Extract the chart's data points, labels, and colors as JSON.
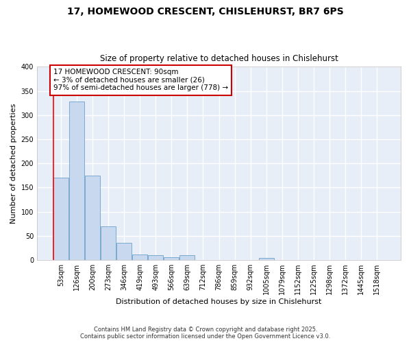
{
  "title": "17, HOMEWOOD CRESCENT, CHISLEHURST, BR7 6PS",
  "subtitle": "Size of property relative to detached houses in Chislehurst",
  "xlabel": "Distribution of detached houses by size in Chislehurst",
  "ylabel": "Number of detached properties",
  "categories": [
    "53sqm",
    "126sqm",
    "200sqm",
    "273sqm",
    "346sqm",
    "419sqm",
    "493sqm",
    "566sqm",
    "639sqm",
    "712sqm",
    "786sqm",
    "859sqm",
    "932sqm",
    "1005sqm",
    "1079sqm",
    "1152sqm",
    "1225sqm",
    "1298sqm",
    "1372sqm",
    "1445sqm",
    "1518sqm"
  ],
  "values": [
    170,
    328,
    175,
    70,
    35,
    11,
    10,
    5,
    10,
    0,
    0,
    0,
    0,
    4,
    0,
    0,
    0,
    0,
    0,
    0,
    0
  ],
  "bar_color": "#c8d8ee",
  "bar_edge_color": "#7aaad0",
  "annotation_text": "17 HOMEWOOD CRESCENT: 90sqm\n← 3% of detached houses are smaller (26)\n97% of semi-detached houses are larger (778) →",
  "annotation_box_color": "#ffffff",
  "annotation_box_edge": "#cc0000",
  "red_line_x": -0.5,
  "ylim": [
    0,
    400
  ],
  "yticks": [
    0,
    50,
    100,
    150,
    200,
    250,
    300,
    350,
    400
  ],
  "plot_bg_color": "#e8eef8",
  "fig_bg_color": "#ffffff",
  "grid_color": "#ffffff",
  "footer_line1": "Contains HM Land Registry data © Crown copyright and database right 2025.",
  "footer_line2": "Contains public sector information licensed under the Open Government Licence v3.0."
}
